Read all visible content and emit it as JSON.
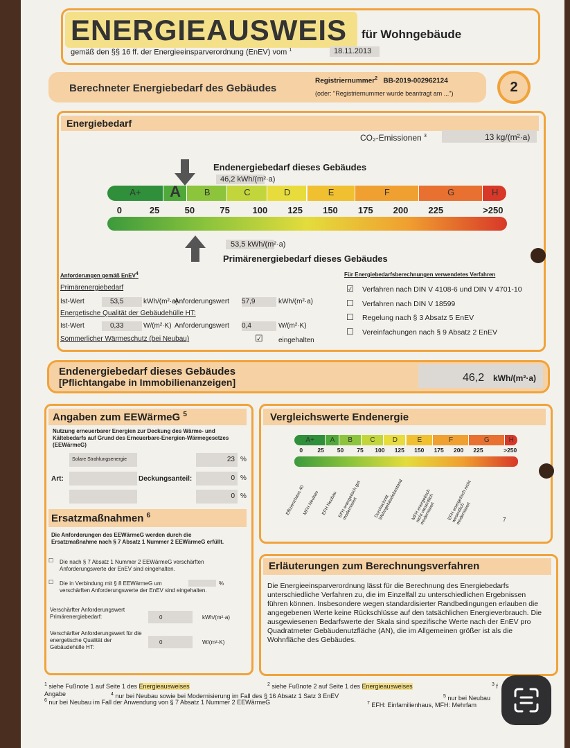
{
  "header": {
    "title": "ENERGIEAUSWEIS",
    "subtitle": "für Wohngebäude",
    "legal": "gemäß den §§ 16 ff. der Energieeinsparverordnung (EnEV) vom",
    "legal_note": "1",
    "date": "18.11.2013"
  },
  "section": {
    "title": "Berechneter Energiebedarf des Gebäudes",
    "registration_label": "Registriernummer",
    "registration_note": "2",
    "registration_number": "BB-2019-002962124",
    "registration_hint": "(oder: \"Registriernummer wurde beantragt am ...\")",
    "page": "2"
  },
  "energy": {
    "heading": "Energiebedarf",
    "co2_label": "CO₂-Emissionen",
    "co2_note": "3",
    "co2_value": "13 kg/(m²·a)",
    "final_label": "Endenergiebedarf dieses Gebäudes",
    "final_value": "46,2 kWh/(m²·a)",
    "classes": [
      "A+",
      "A",
      "B",
      "C",
      "D",
      "E",
      "F",
      "G",
      "H"
    ],
    "scale": [
      "0",
      "25",
      "50",
      "75",
      "100",
      "125",
      "150",
      "175",
      "200",
      "225",
      ">250"
    ],
    "primary_value": "53,5 kWh/(m²·a)",
    "primary_label": "Primärenergiebedarf dieses Gebäudes"
  },
  "requirements": {
    "title": "Anforderungen gemäß EnEV",
    "title_note": "4",
    "primary_heading": "Primärenergiebedarf",
    "primary_row": [
      "Ist-Wert",
      "53,5",
      "kWh/(m²·a)",
      "Anforderungswert",
      "57,9",
      "kWh/(m²·a)"
    ],
    "envelope_heading": "Energetische Qualität der Gebäudehülle HT:",
    "envelope_row": [
      "Ist-Wert",
      "0,33",
      "W/(m²·K)",
      "Anforderungswert",
      "0,4",
      "W/(m²·K)"
    ],
    "summer_label": "Sommerlicher Wärmeschutz (bei Neubau)",
    "summer_checked": true,
    "summer_status": "eingehalten"
  },
  "procedures": {
    "title": "Für Energiebedarfsberechnungen verwendetes Verfahren",
    "items": [
      {
        "label": "Verfahren nach DIN V 4108-6 und DIN V 4701-10",
        "checked": true
      },
      {
        "label": "Verfahren nach DIN V 18599",
        "checked": false
      },
      {
        "label": "Regelung nach § 3 Absatz 5 EnEV",
        "checked": false
      },
      {
        "label": "Vereinfachungen nach § 9 Absatz 2 EnEV",
        "checked": false
      }
    ]
  },
  "band": {
    "line1": "Endenergiebedarf dieses Gebäudes",
    "line2": "[Pflichtangabe in Immobilienanzeigen]",
    "value": "46,2",
    "unit": "kWh/(m²·a)"
  },
  "eewaermeg": {
    "heading": "Angaben zum EEWärmeG",
    "heading_note": "5",
    "intro": "Nutzung erneuerbarer Energien zur Deckung des Wärme- und Kältebedarfs auf Grund des Erneuerbare-Energien-Wärmegesetzes (EEWärmeG)",
    "art_label": "Art:",
    "share_label": "Deckungsanteil:",
    "rows": [
      {
        "kind": "Solare Strahlungsenergie",
        "share": "23",
        "unit": "%"
      },
      {
        "share": "0",
        "unit": "%"
      },
      {
        "share": "0",
        "unit": "%"
      }
    ]
  },
  "substitutes": {
    "heading": "Ersatzmaßnahmen",
    "heading_note": "6",
    "intro": "Die Anforderungen des EEWärmeG werden durch die Ersatzmaßnahme nach § 7 Absatz 1 Nummer 2 EEWärmeG erfüllt.",
    "option1": {
      "label": "Die nach § 7 Absatz 1 Nummer 2 EEWärmeG verschärften Anforderungswerte der EnEV sind eingehalten.",
      "checked": false
    },
    "option2": {
      "label": "Die in Verbindung mit § 8 EEWärmeG um",
      "unit": "%",
      "label_end": "verschärften Anforderungswerte der EnEV sind eingehalten.",
      "checked": false
    },
    "field1": {
      "label": "Verschärfter Anforderungswert Primärenergiebedarf:",
      "value": "0",
      "unit": "kWh/(m²·a)"
    },
    "field2": {
      "label": "Verschärfter Anforderungswert für die energetische Qualität der Gebäudehülle HT:",
      "value": "0",
      "unit": "W/(m²·K)"
    }
  },
  "comparison": {
    "heading": "Vergleichswerte Endenergie",
    "classes": [
      "A+",
      "A",
      "B",
      "C",
      "D",
      "E",
      "F",
      "G",
      "H"
    ],
    "scale": [
      "0",
      "25",
      "50",
      "75",
      "100",
      "125",
      "150",
      "175",
      "200",
      "225",
      ">250"
    ],
    "references": [
      "Effizienzhaus 40",
      "MFH Neubau",
      "EFH Neubau",
      "EFH energetisch gut modernisiert",
      "Durchschnitt Wohngebäudebestand",
      "MFH energetisch nicht wesentlich modernisiert",
      "EFH energetisch nicht wesentlich modernisiert"
    ],
    "note": "7"
  },
  "explanation": {
    "heading": "Erläuterungen zum Berechnungsverfahren",
    "text": "Die Energieeinsparverordnung lässt für die Berechnung des Energiebedarfs unterschiedliche Verfahren zu, die im Einzelfall zu unterschiedlichen Ergebnissen führen können. Insbesondere wegen standardisierter Randbedingungen erlauben die angegebenen Werte keine Rückschlüsse auf den tatsächlichen Energieverbrauch. Die ausgewiesenen Bedarfswerte der Skala sind spezifische Werte nach der EnEV pro Quadratmeter Gebäudenutzfläche (AN), die im Allgemeinen größer ist als die Wohnfläche des Gebäudes."
  },
  "footnotes": {
    "f1": {
      "mark": "1",
      "text": "siehe Fußnote 1 auf Seite 1 des",
      "highlight": "Energieausweises"
    },
    "f2": {
      "mark": "2",
      "text": "siehe Fußnote 2 auf Seite 1 des",
      "highlight": "Energieausweises"
    },
    "f3": {
      "mark": "3",
      "text": "f"
    },
    "f3_end": "Angabe",
    "f4": {
      "mark": "4",
      "text": "nur bei Neubau sowie bei Modernisierung im Fall des § 16 Absatz 1 Satz 3 EnEV"
    },
    "f5": {
      "mark": "5",
      "text": "nur bei Neubau"
    },
    "f6": {
      "mark": "6",
      "text": "nur bei Neubau im Fall der Anwendung von § 7 Absatz 1 Nummer 2 EEWärmeG"
    },
    "f7": {
      "mark": "7",
      "text": "EFH: Einfamilienhaus, MFH: Mehrfam"
    }
  }
}
